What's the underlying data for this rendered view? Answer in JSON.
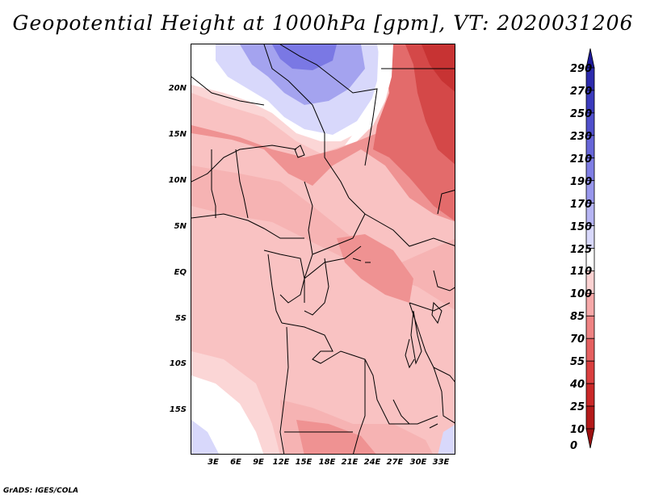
{
  "title": "Geopotential Height at 1000hPa [gpm], VT: 2020031206",
  "credit": "GrADS: IGES/COLA",
  "lat_labels": [
    "20N",
    "15N",
    "10N",
    "5N",
    "EQ",
    "5S",
    "10S",
    "15S"
  ],
  "lon_labels": [
    "3E",
    "6E",
    "9E",
    "12E",
    "15E",
    "18E",
    "21E",
    "24E",
    "27E",
    "30E",
    "33E"
  ],
  "colorbar": {
    "levels": [
      "290",
      "270",
      "250",
      "230",
      "210",
      "190",
      "170",
      "150",
      "125",
      "110",
      "100",
      "85",
      "70",
      "55",
      "40",
      "25",
      "10",
      "0"
    ],
    "colors": [
      "#1e1a9a",
      "#2d2bad",
      "#3b3bbd",
      "#5050cc",
      "#6766d8",
      "#7f7ee4",
      "#9897ec",
      "#b6b5f3",
      "#d8d8fb",
      "#ffffff",
      "#fbd2d2",
      "#f6a9a9",
      "#ef8383",
      "#e56060",
      "#da3f3f",
      "#ca2828",
      "#b41a1a",
      "#9c1010"
    ]
  },
  "map": {
    "background_color": "#f9c2c2",
    "field_colors": {
      "blue_dark": "#7a78e4",
      "blue_mid": "#a4a3ef",
      "blue_light": "#d8d8fb",
      "white": "#ffffff",
      "pink_light": "#fbd6d6",
      "pink": "#f6b3b3",
      "salmon": "#ef9292",
      "red": "#e36b6b",
      "dark_red": "#d44848"
    }
  }
}
